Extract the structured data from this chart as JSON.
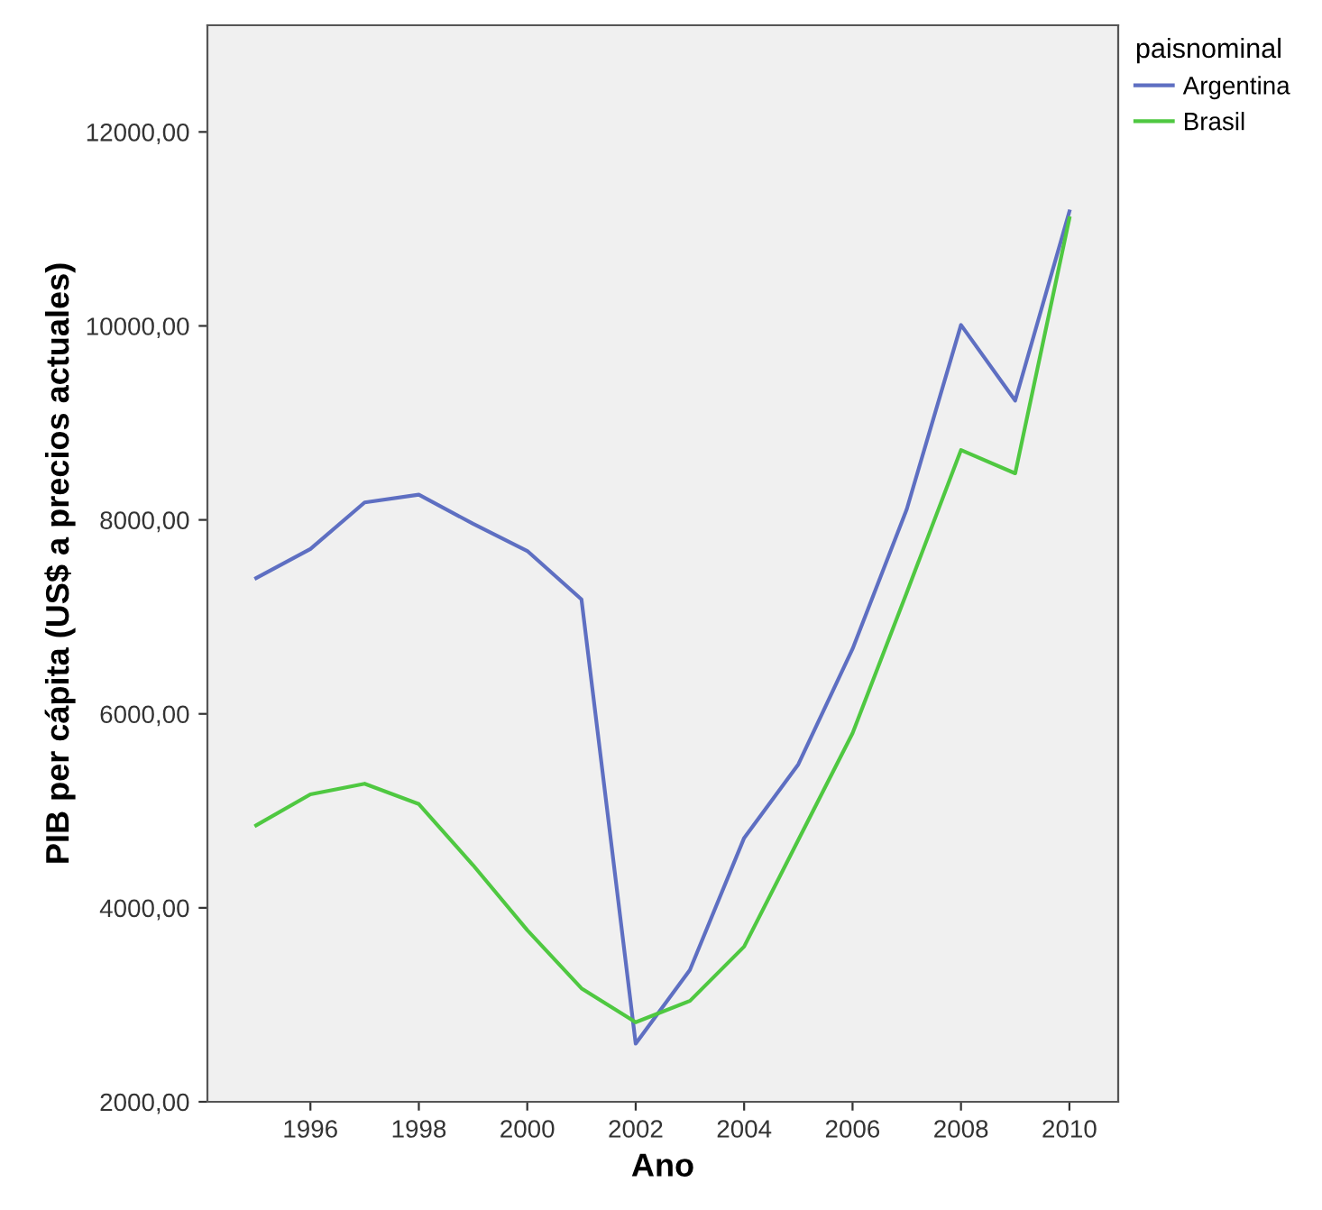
{
  "chart_data": {
    "type": "line",
    "xlabel": "Ano",
    "ylabel": "PIB per cápita (US$ a precios actuales)",
    "legend_title": "paisnominal",
    "legend": "right",
    "grid": false,
    "marker": "none",
    "line_style": "solid",
    "x": [
      1995,
      1996,
      1997,
      1998,
      1999,
      2000,
      2001,
      2002,
      2003,
      2004,
      2005,
      2006,
      2007,
      2008,
      2009,
      2010
    ],
    "series": [
      {
        "name": "Argentina",
        "color": "#5e6fc2",
        "values": [
          7400,
          7700,
          8180,
          8260,
          7960,
          7680,
          7180,
          2600,
          3360,
          4720,
          5480,
          6670,
          8110,
          10010,
          9230,
          11180
        ]
      },
      {
        "name": "Brasil",
        "color": "#4fc841",
        "values": [
          4850,
          5170,
          5280,
          5070,
          4440,
          3770,
          3170,
          2820,
          3040,
          3600,
          4700,
          5800,
          7250,
          8720,
          8480,
          11110
        ]
      }
    ],
    "xlim": [
      1994.1,
      2010.9
    ],
    "xticks": [
      1996,
      1998,
      2000,
      2002,
      2004,
      2006,
      2008,
      2010
    ],
    "ylim": [
      2000,
      13100
    ],
    "yticks": [
      {
        "value": 2000,
        "label": "2000,00"
      },
      {
        "value": 4000,
        "label": "4000,00"
      },
      {
        "value": 6000,
        "label": "6000,00"
      },
      {
        "value": 8000,
        "label": "8000,00"
      },
      {
        "value": 10000,
        "label": "10000,00"
      },
      {
        "value": 12000,
        "label": "12000,00"
      }
    ]
  }
}
